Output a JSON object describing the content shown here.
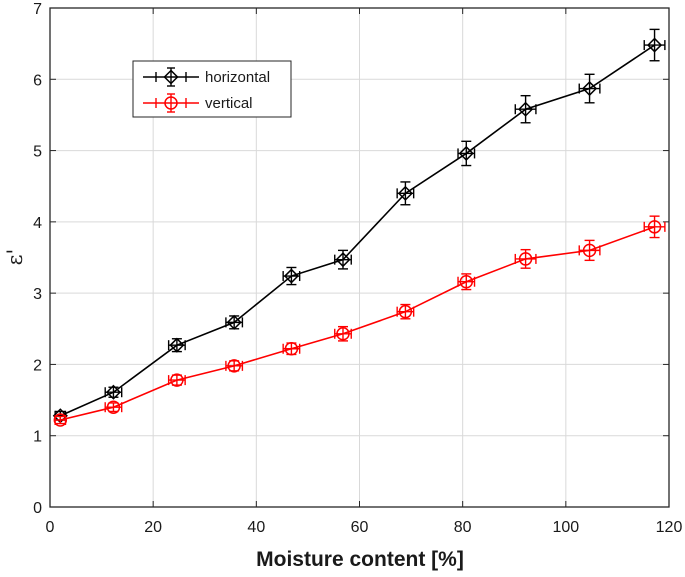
{
  "chart_data": {
    "type": "line",
    "title": "",
    "xlabel": "Moisture content [%]",
    "ylabel": "ε'",
    "xlim": [
      0,
      120
    ],
    "ylim": [
      0,
      7
    ],
    "xticks": [
      0,
      20,
      40,
      60,
      80,
      100,
      120
    ],
    "yticks": [
      0,
      1,
      2,
      3,
      4,
      5,
      6,
      7
    ],
    "grid": true,
    "legend_position": "top-left",
    "series": [
      {
        "name": "horizontal",
        "color": "#000000",
        "marker": "diamond",
        "x": [
          2,
          12.3,
          24.6,
          35.7,
          46.8,
          56.8,
          68.9,
          80.7,
          92.2,
          104.6,
          117.2
        ],
        "y": [
          1.28,
          1.61,
          2.27,
          2.59,
          3.24,
          3.47,
          4.4,
          4.96,
          5.58,
          5.87,
          6.48
        ],
        "xerr": [
          1.0,
          1.6,
          1.6,
          1.6,
          1.6,
          1.6,
          1.6,
          1.6,
          2.0,
          2.0,
          2.0
        ],
        "yerr": [
          0.06,
          0.07,
          0.09,
          0.09,
          0.12,
          0.13,
          0.16,
          0.17,
          0.19,
          0.2,
          0.22
        ]
      },
      {
        "name": "vertical",
        "color": "#ff0000",
        "marker": "circle",
        "x": [
          2,
          12.3,
          24.6,
          35.7,
          46.8,
          56.8,
          68.9,
          80.7,
          92.2,
          104.6,
          117.2
        ],
        "y": [
          1.22,
          1.4,
          1.78,
          1.98,
          2.22,
          2.43,
          2.74,
          3.16,
          3.48,
          3.6,
          3.93
        ],
        "xerr": [
          1.0,
          1.6,
          1.6,
          1.6,
          1.6,
          1.6,
          1.6,
          1.6,
          2.0,
          2.0,
          2.0
        ],
        "yerr": [
          0.05,
          0.06,
          0.07,
          0.07,
          0.08,
          0.1,
          0.1,
          0.11,
          0.13,
          0.14,
          0.15
        ]
      }
    ]
  }
}
